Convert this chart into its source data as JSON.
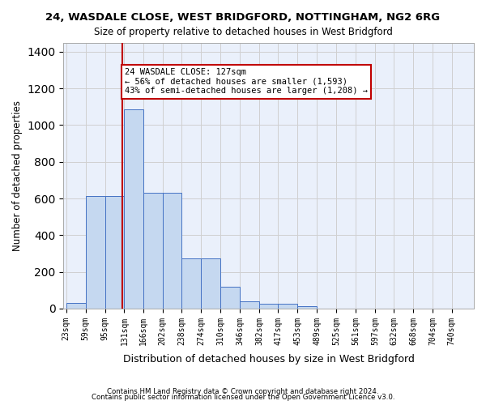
{
  "title": "24, WASDALE CLOSE, WEST BRIDGFORD, NOTTINGHAM, NG2 6RG",
  "subtitle": "Size of property relative to detached houses in West Bridgford",
  "xlabel": "Distribution of detached houses by size in West Bridgford",
  "ylabel": "Number of detached properties",
  "footnote1": "Contains HM Land Registry data © Crown copyright and database right 2024.",
  "footnote2": "Contains public sector information licensed under the Open Government Licence v3.0.",
  "bin_labels": [
    "23sqm",
    "59sqm",
    "95sqm",
    "131sqm",
    "166sqm",
    "202sqm",
    "238sqm",
    "274sqm",
    "310sqm",
    "346sqm",
    "382sqm",
    "417sqm",
    "453sqm",
    "489sqm",
    "525sqm",
    "561sqm",
    "597sqm",
    "632sqm",
    "668sqm",
    "704sqm",
    "740sqm"
  ],
  "bar_values": [
    30,
    615,
    615,
    1085,
    630,
    630,
    275,
    275,
    120,
    40,
    25,
    25,
    12,
    0,
    0,
    0,
    0,
    0,
    0,
    0,
    0
  ],
  "bar_color": "#c5d8f0",
  "bar_edge_color": "#4472c4",
  "grid_color": "#d0d0d0",
  "bg_color": "#eaf0fb",
  "annotation_text": "24 WASDALE CLOSE: 127sqm\n← 56% of detached houses are smaller (1,593)\n43% of semi-detached houses are larger (1,208) →",
  "vline_x": 127,
  "vline_color": "#c00000",
  "box_color": "#c00000",
  "ylim": [
    0,
    1450
  ],
  "yticks": [
    0,
    200,
    400,
    600,
    800,
    1000,
    1200,
    1400
  ],
  "bin_edges": [
    23,
    59,
    95,
    131,
    166,
    202,
    238,
    274,
    310,
    346,
    382,
    417,
    453,
    489,
    525,
    561,
    597,
    632,
    668,
    704,
    740,
    776
  ]
}
